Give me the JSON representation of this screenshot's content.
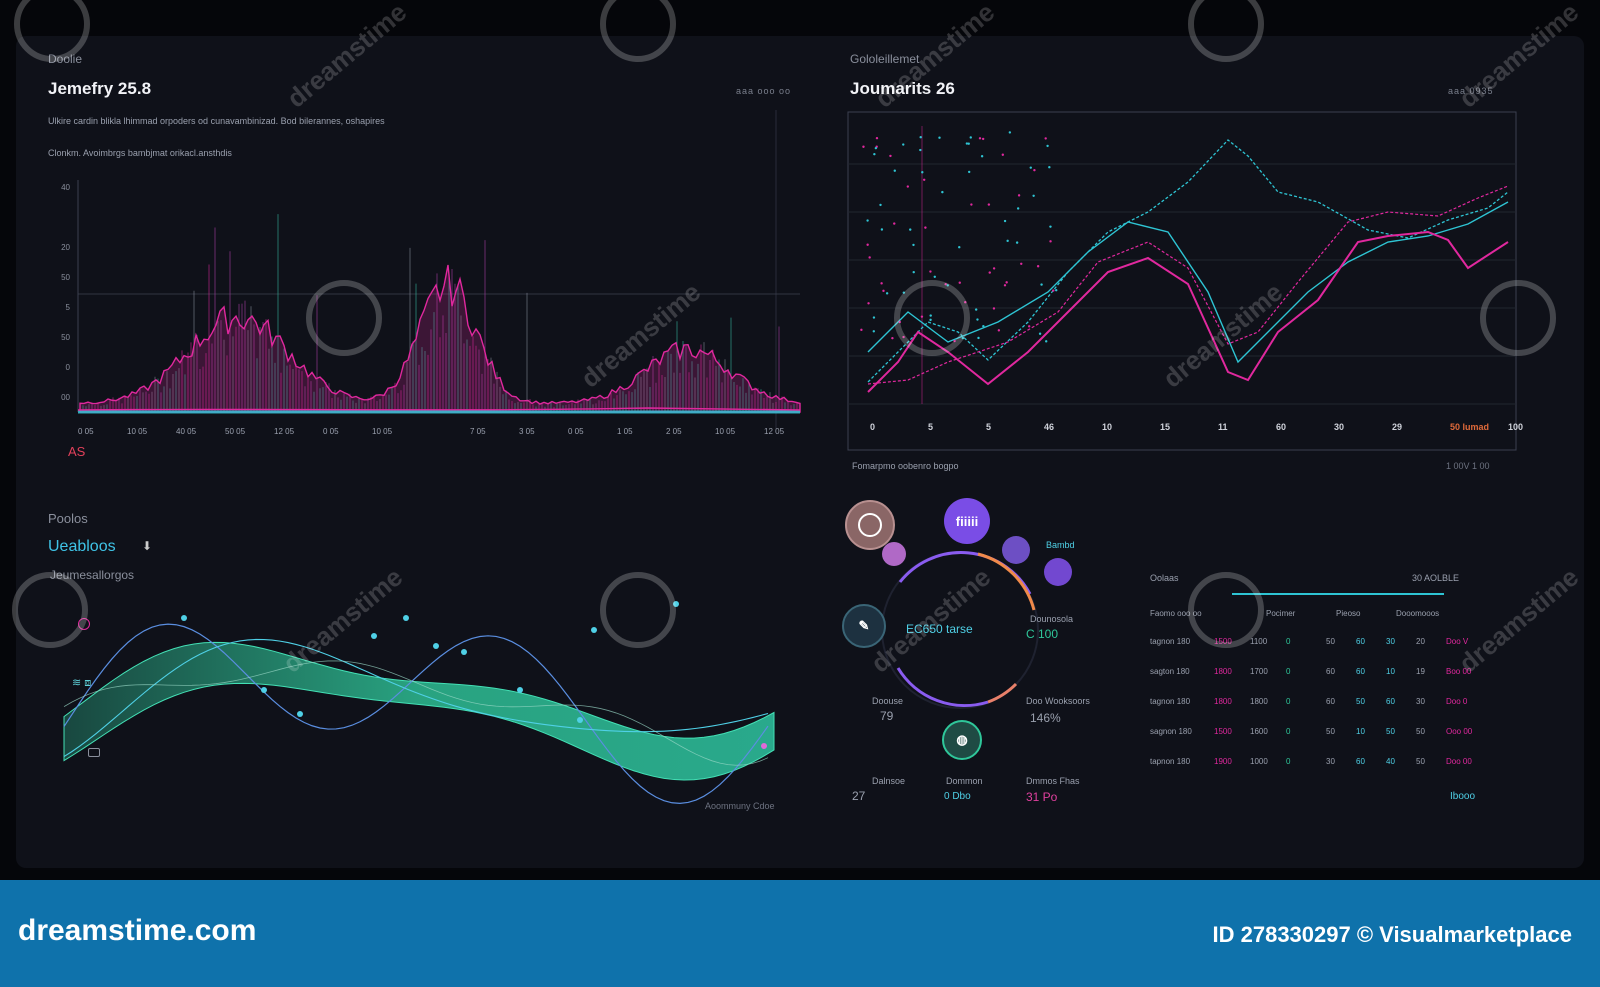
{
  "panel_tl": {
    "kicker": "Doolie",
    "title": "Jemefry 25.8",
    "sub1": "Ulkire cardin blikla lhimmad orpoders od cunavambinizad. Bod bilerannes, oshapires",
    "sub2": "Clonkm. Avoimbrgs bambjmat orikacl.ansthdis",
    "controls": "aaa  ooo  oo",
    "footnote": "AS",
    "ticks_y": [
      "40",
      "",
      "20",
      "50",
      "5",
      "50",
      "0",
      "00"
    ],
    "ticks_x": [
      "0 05",
      "10 05",
      "40 05",
      "50 05",
      "12 05",
      "0 05",
      "10 05",
      "",
      "7 05",
      "3 05",
      "0 05",
      "1 05",
      "2 05",
      "10 05",
      "12 05"
    ]
  },
  "panel_tr": {
    "kicker": "Gololeillemet",
    "title": "Joumarits 26",
    "controls": "aaa  0935",
    "ticks_x": [
      "0",
      "5",
      "5",
      "46",
      "10",
      "15",
      "11",
      "60",
      "30",
      "29",
      "50 lumad",
      "100"
    ],
    "caption": "Fomarpmo oobenro bogpo",
    "caption_right": "1 00V   1 00"
  },
  "panel_bl": {
    "kicker": "Poolos",
    "title": "Ueabloos",
    "subtitle": "Jeumesallorgos",
    "footnote": "Aoommuny Cdoe"
  },
  "panel_br": {
    "center_value": "EC650 tarse",
    "center_right": "C 100",
    "side_label": "Dounosola",
    "tl_label": "Doouse",
    "tl_value": "79",
    "tr_label": "Doo Wooksoors",
    "tr_value": "146%",
    "bottom_label1": "Dalnsoe",
    "bottom_value1": "27",
    "bottom_label2": "Dommon",
    "bottom_value2": "0 Dbo",
    "bottom_label3": "Dmmos Fhas",
    "bottom_value3": "31 Po",
    "node_labels": [
      "Bambd",
      "fiiiii",
      "",
      "",
      "",
      "",
      ""
    ],
    "table_title": "Oolaas",
    "table_title_right": "30 AOLBLE",
    "table_headers": [
      "Faomo ooo oo",
      "Pocimer",
      "Pieoso",
      "Dooomooos"
    ],
    "table_rows": [
      [
        "tagnon 180",
        "1500",
        "1100",
        "0",
        "50",
        "60",
        "30",
        "20",
        "Doo V"
      ],
      [
        "sagton 180",
        "1800",
        "1700",
        "0",
        "60",
        "60",
        "10",
        "19",
        "Boo 00"
      ],
      [
        "tagnon 180",
        "1800",
        "1800",
        "0",
        "60",
        "50",
        "60",
        "30",
        "Doo 0"
      ],
      [
        "sagnon 180",
        "1500",
        "1600",
        "0",
        "50",
        "10",
        "50",
        "50",
        "Ooo 00"
      ],
      [
        "tapnon 180",
        "1900",
        "1000",
        "0",
        "30",
        "60",
        "40",
        "50",
        "Doo 00"
      ]
    ],
    "table_footer": "Ibooo"
  },
  "footer": {
    "brand": "dreamstime.com",
    "credit": "ID 278330297 © Visualmarketplace"
  },
  "watermark": "dreamstime",
  "colors": {
    "background": "#0f1119",
    "magenta": "#e0289e",
    "cyan": "#2ec4d3",
    "green": "#2fc79a",
    "footer": "#0f72ab"
  }
}
